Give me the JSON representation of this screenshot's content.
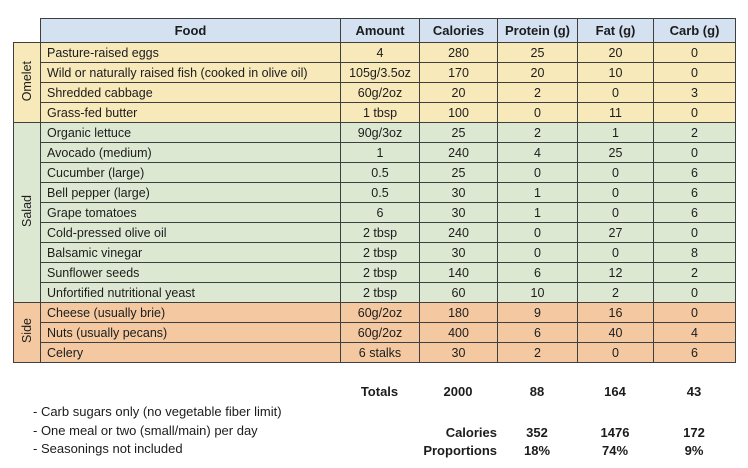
{
  "colors": {
    "header_bg": "#d3e1f1",
    "omelet_bg": "#f7e9b9",
    "salad_bg": "#dde8d3",
    "side_bg": "#f4c9a1",
    "border": "#3f3f3f"
  },
  "table": {
    "headers": [
      "Food",
      "Amount",
      "Calories",
      "Protein (g)",
      "Fat (g)",
      "Carb (g)"
    ],
    "sections": [
      {
        "name": "Omelet",
        "bg": "#f7e9b9",
        "rows": [
          [
            "Pasture-raised eggs",
            "4",
            "280",
            "25",
            "20",
            "0"
          ],
          [
            "Wild or naturally raised fish (cooked in olive oil)",
            "105g/3.5oz",
            "170",
            "20",
            "10",
            "0"
          ],
          [
            "Shredded cabbage",
            "60g/2oz",
            "20",
            "2",
            "0",
            "3"
          ],
          [
            "Grass-fed butter",
            "1 tbsp",
            "100",
            "0",
            "11",
            "0"
          ]
        ]
      },
      {
        "name": "Salad",
        "bg": "#dde8d3",
        "rows": [
          [
            "Organic lettuce",
            "90g/3oz",
            "25",
            "2",
            "1",
            "2"
          ],
          [
            "Avocado (medium)",
            "1",
            "240",
            "4",
            "25",
            "0"
          ],
          [
            "Cucumber (large)",
            "0.5",
            "25",
            "0",
            "0",
            "6"
          ],
          [
            "Bell pepper (large)",
            "0.5",
            "30",
            "1",
            "0",
            "6"
          ],
          [
            "Grape tomatoes",
            "6",
            "30",
            "1",
            "0",
            "6"
          ],
          [
            "Cold-pressed olive oil",
            "2 tbsp",
            "240",
            "0",
            "27",
            "0"
          ],
          [
            "Balsamic vinegar",
            "2 tbsp",
            "30",
            "0",
            "0",
            "8"
          ],
          [
            "Sunflower seeds",
            "2 tbsp",
            "140",
            "6",
            "12",
            "2"
          ],
          [
            "Unfortified nutritional yeast",
            "2 tbsp",
            "60",
            "10",
            "2",
            "0"
          ]
        ]
      },
      {
        "name": "Side",
        "bg": "#f4c9a1",
        "rows": [
          [
            "Cheese (usually brie)",
            "60g/2oz",
            "180",
            "9",
            "16",
            "0"
          ],
          [
            "Nuts (usually pecans)",
            "60g/2oz",
            "400",
            "6",
            "40",
            "4"
          ],
          [
            "Celery",
            "6 stalks",
            "30",
            "2",
            "0",
            "6"
          ]
        ]
      }
    ]
  },
  "totals": {
    "label": "Totals",
    "calories": "2000",
    "protein": "88",
    "fat": "164",
    "carb": "43"
  },
  "notes": [
    "- Carb sugars only (no vegetable fiber limit)",
    "- One meal or two (small/main) per day",
    "- Seasonings not included"
  ],
  "summary": {
    "calories_row": {
      "label": "Calories",
      "protein": "352",
      "fat": "1476",
      "carb": "172"
    },
    "proportions_row": {
      "label": "Proportions",
      "protein": "18%",
      "fat": "74%",
      "carb": "9%"
    }
  }
}
